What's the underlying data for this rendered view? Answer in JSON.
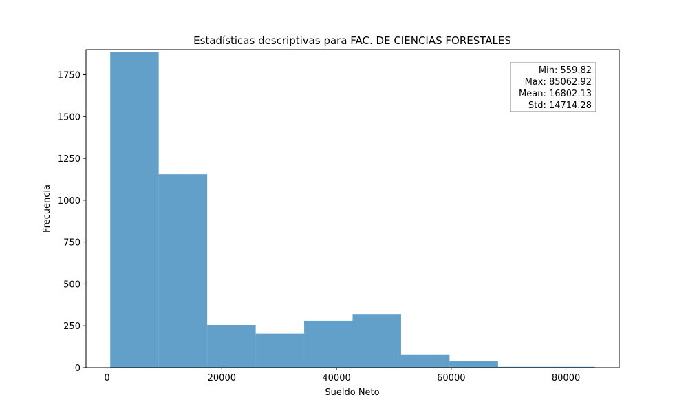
{
  "chart_data": {
    "type": "bar",
    "title": "Estadísticas descriptivas para FAC. DE CIENCIAS FORESTALES",
    "xlabel": "Sueldo Neto",
    "ylabel": "Frecuencia",
    "bin_edges": [
      559.82,
      9010.13,
      17460.44,
      25910.75,
      34361.06,
      42811.37,
      51261.68,
      59711.99,
      68162.3,
      76612.61,
      85062.92
    ],
    "values": [
      1885,
      1155,
      255,
      203,
      280,
      320,
      75,
      38,
      5,
      5
    ],
    "xlim": [
      -3665,
      89288
    ],
    "ylim": [
      0,
      1900
    ],
    "x_ticks": [
      0,
      20000,
      40000,
      60000,
      80000
    ],
    "x_tick_labels": [
      "0",
      "20000",
      "40000",
      "60000",
      "80000"
    ],
    "y_ticks": [
      0,
      250,
      500,
      750,
      1000,
      1250,
      1500,
      1750
    ],
    "y_tick_labels": [
      "0",
      "250",
      "500",
      "750",
      "1000",
      "1250",
      "1500",
      "1750"
    ],
    "bar_color": "#1f77b4",
    "bar_opacity": 0.7,
    "grid": false,
    "stats_box": {
      "placement": "top-right",
      "lines": [
        "Min: 559.82",
        "Max: 85062.92",
        "Mean: 16802.13",
        "Std: 14714.28"
      ]
    }
  }
}
